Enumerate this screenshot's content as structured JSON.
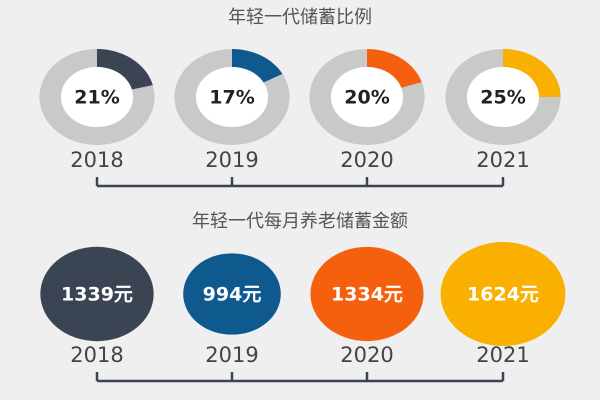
{
  "chart_data": [
    {
      "type": "donut",
      "title": "年轻一代储蓄比例",
      "categories": [
        "2018",
        "2019",
        "2020",
        "2021"
      ],
      "values": [
        21,
        17,
        20,
        25
      ],
      "value_labels": [
        "21%",
        "17%",
        "20%",
        "25%"
      ],
      "colors": [
        "#3a4452",
        "#0e5a8f",
        "#f5600f",
        "#f9b000"
      ],
      "track_color": "#c9c9c9"
    },
    {
      "type": "bubble",
      "title": "年轻一代每月养老储蓄金额",
      "categories": [
        "2018",
        "2019",
        "2020",
        "2021"
      ],
      "values": [
        1339,
        994,
        1334,
        1624
      ],
      "value_labels": [
        "1339元",
        "994元",
        "1334元",
        "1624元"
      ],
      "colors": [
        "#3a4452",
        "#0e5a8f",
        "#f5600f",
        "#f9b000"
      ]
    }
  ]
}
